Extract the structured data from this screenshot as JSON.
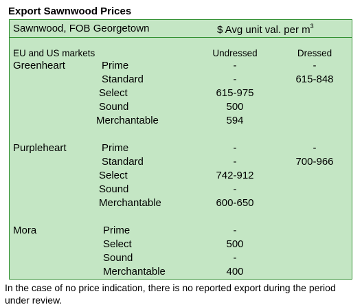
{
  "title": "Export Sawnwood Prices",
  "header": {
    "left": "Sawnwood, FOB Georgetown",
    "right": "$ Avg unit val. per m",
    "right_sup": "3"
  },
  "columns": {
    "market_label": "EU and US markets",
    "undressed": "Undressed",
    "dressed": "Dressed"
  },
  "species": [
    {
      "name": "Greenheart",
      "rows": [
        {
          "grade": "Prime",
          "undressed": "-",
          "dressed": "-"
        },
        {
          "grade": "Standard",
          "undressed": "-",
          "dressed": "615-848"
        },
        {
          "grade": "Select",
          "undressed": "615-975",
          "dressed": ""
        },
        {
          "grade": "Sound",
          "undressed": "500",
          "dressed": ""
        },
        {
          "grade": "Merchantable",
          "undressed": "594",
          "dressed": ""
        }
      ]
    },
    {
      "name": "Purpleheart",
      "rows": [
        {
          "grade": "Prime",
          "undressed": "-",
          "dressed": "-"
        },
        {
          "grade": "Standard",
          "undressed": "-",
          "dressed": "700-966"
        },
        {
          "grade": "Select",
          "undressed": "742-912",
          "dressed": ""
        },
        {
          "grade": "Sound",
          "undressed": "-",
          "dressed": ""
        },
        {
          "grade": "Merchantable",
          "undressed": "600-650",
          "dressed": ""
        }
      ]
    },
    {
      "name": "Mora",
      "rows": [
        {
          "grade": "Prime",
          "undressed": "-",
          "dressed": ""
        },
        {
          "grade": "Select",
          "undressed": "500",
          "dressed": ""
        },
        {
          "grade": "Sound",
          "undressed": "-",
          "dressed": ""
        },
        {
          "grade": "Merchantable",
          "undressed": "400",
          "dressed": ""
        }
      ]
    }
  ],
  "footer": "In the case of no price indication, there is no reported export during the period under review."
}
